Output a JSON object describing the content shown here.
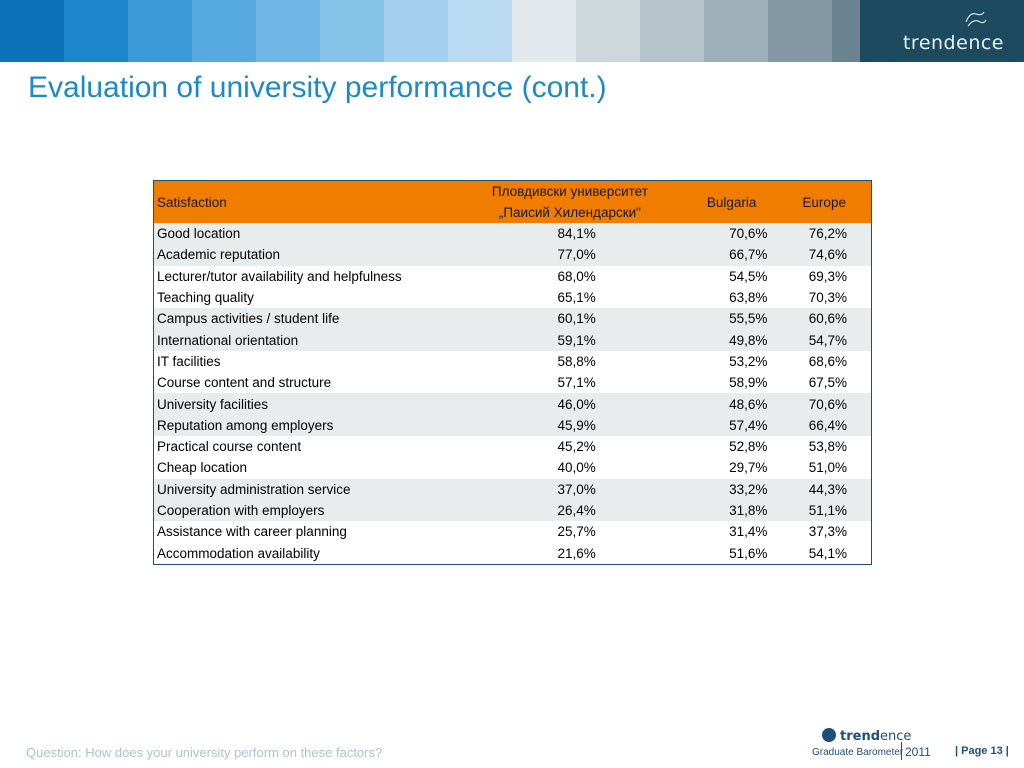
{
  "header": {
    "band_colors": [
      "#0d73b8",
      "#1c86cc",
      "#3b9ad7",
      "#55a9df",
      "#6fb7e4",
      "#86c2e8",
      "#a3d0ee",
      "#badbf1",
      "#e2e8ec",
      "#cdd7dc",
      "#b5c3ca",
      "#9dafb8",
      "#8499a4",
      "#6a8391",
      "#4f6e7e",
      "#3d5f70"
    ],
    "brand_prefix": "trend",
    "brand_suffix": "ence"
  },
  "title": "Evaluation of university performance (cont.)",
  "table": {
    "header": {
      "label": "Satisfaction",
      "uni_line1": "Пловдивски университет",
      "uni_line2": "„Паисий Хилендарски\"",
      "bulgaria": "Bulgaria",
      "europe": "Europe"
    },
    "rows": [
      {
        "label": "Good location",
        "uni": "84,1%",
        "bg": "70,6%",
        "eu": "76,2%"
      },
      {
        "label": "Academic reputation",
        "uni": "77,0%",
        "bg": "66,7%",
        "eu": "74,6%"
      },
      {
        "label": "Lecturer/tutor availability and helpfulness",
        "uni": "68,0%",
        "bg": "54,5%",
        "eu": "69,3%"
      },
      {
        "label": "Teaching quality",
        "uni": "65,1%",
        "bg": "63,8%",
        "eu": "70,3%"
      },
      {
        "label": "Campus activities / student life",
        "uni": "60,1%",
        "bg": "55,5%",
        "eu": "60,6%"
      },
      {
        "label": "International orientation",
        "uni": "59,1%",
        "bg": "49,8%",
        "eu": "54,7%"
      },
      {
        "label": "IT facilities",
        "uni": "58,8%",
        "bg": "53,2%",
        "eu": "68,6%"
      },
      {
        "label": "Course content and structure",
        "uni": "57,1%",
        "bg": "58,9%",
        "eu": "67,5%"
      },
      {
        "label": "University facilities",
        "uni": "46,0%",
        "bg": "48,6%",
        "eu": "70,6%"
      },
      {
        "label": "Reputation among employers",
        "uni": "45,9%",
        "bg": "57,4%",
        "eu": "66,4%"
      },
      {
        "label": "Practical course content",
        "uni": "45,2%",
        "bg": "52,8%",
        "eu": "53,8%"
      },
      {
        "label": "Cheap location",
        "uni": "40,0%",
        "bg": "29,7%",
        "eu": "51,0%"
      },
      {
        "label": "University administration service",
        "uni": "37,0%",
        "bg": "33,2%",
        "eu": "44,3%"
      },
      {
        "label": "Cooperation with employers",
        "uni": "26,4%",
        "bg": "31,8%",
        "eu": "51,1%"
      },
      {
        "label": "Assistance with career planning",
        "uni": "25,7%",
        "bg": "31,4%",
        "eu": "37,3%"
      },
      {
        "label": "Accommodation availability",
        "uni": "21,6%",
        "bg": "51,6%",
        "eu": "54,1%"
      }
    ],
    "shaded_rows": [
      0,
      1,
      4,
      5,
      8,
      9,
      12,
      13
    ]
  },
  "footer": {
    "question": "Question: How does your university perform on these factors?",
    "brand_prefix": "trend",
    "brand_suffix": "ence",
    "brand_sub": "Graduate Barometer",
    "year": "2011",
    "page": "| Page 13 |"
  },
  "colors": {
    "title": "#1a8bc7",
    "table_header": "#f07c00",
    "row_shade": "#e8ecec",
    "table_border": "#1f4e79"
  }
}
